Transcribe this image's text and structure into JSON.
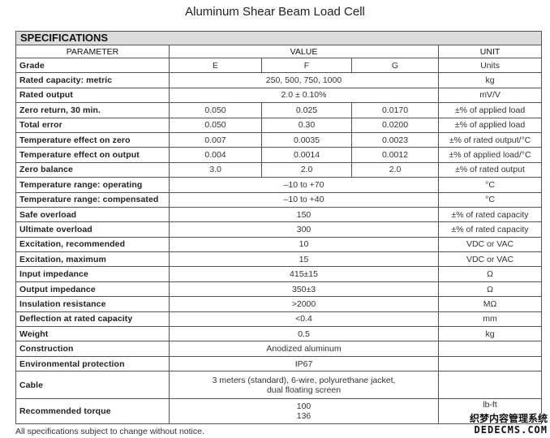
{
  "title": "Aluminum Shear Beam Load Cell",
  "section_header": "SPECIFICATIONS",
  "columns": {
    "parameter": "PARAMETER",
    "value": "VALUE",
    "unit": "UNIT"
  },
  "rows": [
    {
      "parameter": "Grade",
      "values": [
        "E",
        "F",
        "G"
      ],
      "unit": "Units"
    },
    {
      "parameter": "Rated capacity: metric",
      "value": "250, 500, 750, 1000",
      "unit": "kg"
    },
    {
      "parameter": "Rated output",
      "value": "2.0 ± 0.10%",
      "unit": "mV/V"
    },
    {
      "parameter": "Zero return, 30 min.",
      "values": [
        "0.050",
        "0.025",
        "0.0170"
      ],
      "unit": "±% of applied load"
    },
    {
      "parameter": "Total error",
      "values": [
        "0.050",
        "0.30",
        "0.0200"
      ],
      "unit": "±% of applied load"
    },
    {
      "parameter": "Temperature effect on zero",
      "values": [
        "0.007",
        "0.0035",
        "0.0023"
      ],
      "unit": "±% of rated output/°C"
    },
    {
      "parameter": "Temperature effect on output",
      "values": [
        "0.004",
        "0.0014",
        "0.0012"
      ],
      "unit": "±% of applied load/°C"
    },
    {
      "parameter": "Zero balance",
      "values": [
        "3.0",
        "2.0",
        "2.0"
      ],
      "unit": "±% of rated output"
    },
    {
      "parameter": "Temperature range: operating",
      "value": "–10 to +70",
      "unit": "°C"
    },
    {
      "parameter": "Temperature range: compensated",
      "value": "–10 to +40",
      "unit": "°C"
    },
    {
      "parameter": "Safe overload",
      "value": "150",
      "unit": "±% of rated capacity"
    },
    {
      "parameter": "Ultimate overload",
      "value": "300",
      "unit": "±% of rated capacity"
    },
    {
      "parameter": "Excitation, recommended",
      "value": "10",
      "unit": "VDC or VAC"
    },
    {
      "parameter": "Excitation, maximum",
      "value": "15",
      "unit": "VDC or VAC"
    },
    {
      "parameter": "Input impedance",
      "value": "415±15",
      "unit": "Ω"
    },
    {
      "parameter": "Output impedance",
      "value": "350±3",
      "unit": "Ω"
    },
    {
      "parameter": "Insulation resistance",
      "value": ">2000",
      "unit": "MΩ"
    },
    {
      "parameter": "Deflection at rated capacity",
      "value": "<0.4",
      "unit": "mm"
    },
    {
      "parameter": "Weight",
      "value": "0.5",
      "unit": "kg"
    },
    {
      "parameter": "Construction",
      "value": "Anodized aluminum",
      "unit": ""
    },
    {
      "parameter": "Environmental protection",
      "value": "IP67",
      "unit": ""
    },
    {
      "parameter": "Cable",
      "value": "3 meters (standard), 6-wire, polyurethane jacket,\ndual floating screen",
      "unit": ""
    },
    {
      "parameter": "Recommended torque",
      "value": "100\n136",
      "unit": "lb-ft"
    }
  ],
  "footer": "All specifications subject to change without notice.",
  "watermark": {
    "line1": "织梦内容管理系统",
    "line2": "DEDECMS.COM"
  }
}
